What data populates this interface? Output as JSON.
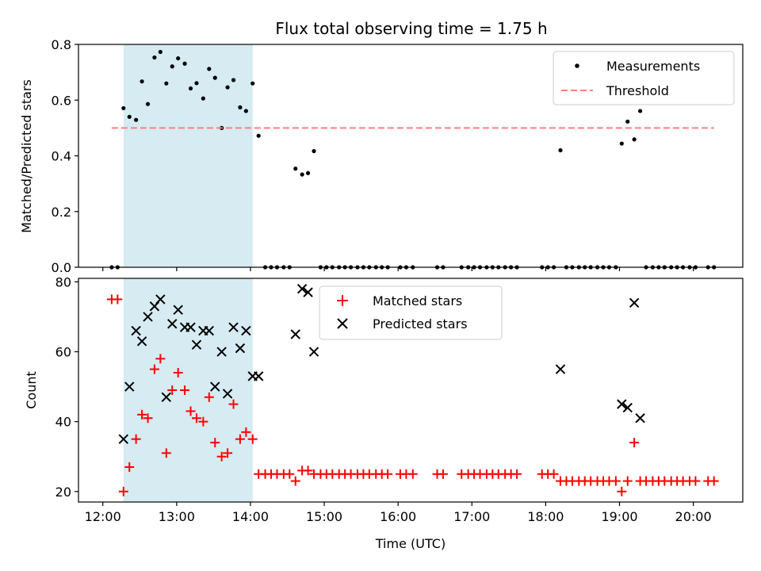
{
  "chart_data": {
    "title": "Flux total observing time = 1.75 h",
    "xlabel": "Time (UTC)",
    "x_unit": "hour of day (UTC)",
    "xlim": [
      11.67,
      20.67
    ],
    "x_ticks": [
      12,
      13,
      14,
      15,
      16,
      17,
      18,
      19,
      20
    ],
    "x_tick_labels": [
      "12:00",
      "13:00",
      "14:00",
      "15:00",
      "16:00",
      "17:00",
      "18:00",
      "19:00",
      "20:00"
    ],
    "highlight_span": {
      "x0": 12.28,
      "x1": 14.03,
      "color": "#add8e6"
    },
    "panels": [
      {
        "type": "scatter",
        "ylabel": "Matched/Predicted stars",
        "ylim": [
          0.0,
          0.8
        ],
        "y_ticks": [
          0.0,
          0.2,
          0.4,
          0.6,
          0.8
        ],
        "y_tick_labels": [
          "0.0",
          "0.2",
          "0.4",
          "0.6",
          "0.8"
        ],
        "legend": {
          "placement": "top-right",
          "entries": [
            "Measurements",
            "Threshold"
          ]
        },
        "series": [
          {
            "name": "Measurements",
            "marker": "dot",
            "color": "#000000",
            "points": [
              [
                12.12,
                0.0
              ],
              [
                12.2,
                0.0
              ],
              [
                12.28,
                0.571
              ],
              [
                12.36,
                0.54
              ],
              [
                12.45,
                0.529
              ],
              [
                12.53,
                0.667
              ],
              [
                12.61,
                0.586
              ],
              [
                12.7,
                0.753
              ],
              [
                12.78,
                0.773
              ],
              [
                12.86,
                0.66
              ],
              [
                12.94,
                0.721
              ],
              [
                13.02,
                0.75
              ],
              [
                13.11,
                0.731
              ],
              [
                13.19,
                0.642
              ],
              [
                13.27,
                0.661
              ],
              [
                13.36,
                0.606
              ],
              [
                13.44,
                0.712
              ],
              [
                13.52,
                0.68
              ],
              [
                13.61,
                0.5
              ],
              [
                13.69,
                0.646
              ],
              [
                13.77,
                0.672
              ],
              [
                13.86,
                0.574
              ],
              [
                13.94,
                0.561
              ],
              [
                14.03,
                0.66
              ],
              [
                14.11,
                0.472
              ],
              [
                14.2,
                0.0
              ],
              [
                14.28,
                0.0
              ],
              [
                14.36,
                0.0
              ],
              [
                14.45,
                0.0
              ],
              [
                14.53,
                0.0
              ],
              [
                14.61,
                0.354
              ],
              [
                14.7,
                0.333
              ],
              [
                14.78,
                0.338
              ],
              [
                14.86,
                0.417
              ],
              [
                14.95,
                0.0
              ],
              [
                15.03,
                0.0
              ],
              [
                15.11,
                0.0
              ],
              [
                15.2,
                0.0
              ],
              [
                15.28,
                0.0
              ],
              [
                15.36,
                0.0
              ],
              [
                15.45,
                0.0
              ],
              [
                15.53,
                0.0
              ],
              [
                15.61,
                0.0
              ],
              [
                15.7,
                0.0
              ],
              [
                15.78,
                0.0
              ],
              [
                15.86,
                0.0
              ],
              [
                16.03,
                0.0
              ],
              [
                16.11,
                0.0
              ],
              [
                16.2,
                0.0
              ],
              [
                16.53,
                0.0
              ],
              [
                16.61,
                0.0
              ],
              [
                16.86,
                0.0
              ],
              [
                16.95,
                0.0
              ],
              [
                17.03,
                0.0
              ],
              [
                17.11,
                0.0
              ],
              [
                17.2,
                0.0
              ],
              [
                17.28,
                0.0
              ],
              [
                17.36,
                0.0
              ],
              [
                17.45,
                0.0
              ],
              [
                17.53,
                0.0
              ],
              [
                17.61,
                0.0
              ],
              [
                17.95,
                0.0
              ],
              [
                18.03,
                0.0
              ],
              [
                18.11,
                0.0
              ],
              [
                18.2,
                0.42
              ],
              [
                18.28,
                0.0
              ],
              [
                18.36,
                0.0
              ],
              [
                18.45,
                0.0
              ],
              [
                18.53,
                0.0
              ],
              [
                18.61,
                0.0
              ],
              [
                18.7,
                0.0
              ],
              [
                18.78,
                0.0
              ],
              [
                18.86,
                0.0
              ],
              [
                18.95,
                0.0
              ],
              [
                19.03,
                0.444
              ],
              [
                19.11,
                0.523
              ],
              [
                19.2,
                0.459
              ],
              [
                19.28,
                0.561
              ],
              [
                19.36,
                0.0
              ],
              [
                19.45,
                0.0
              ],
              [
                19.53,
                0.0
              ],
              [
                19.61,
                0.0
              ],
              [
                19.7,
                0.0
              ],
              [
                19.78,
                0.0
              ],
              [
                19.86,
                0.0
              ],
              [
                19.95,
                0.0
              ],
              [
                20.03,
                0.0
              ],
              [
                20.2,
                0.0
              ],
              [
                20.28,
                0.0
              ]
            ]
          },
          {
            "name": "Threshold",
            "type": "line",
            "style": "dashed",
            "color": "#ff7f7f",
            "y": 0.5,
            "x_range": [
              12.12,
              20.28
            ]
          }
        ]
      },
      {
        "type": "scatter",
        "ylabel": "Count",
        "ylim": [
          17,
          81
        ],
        "y_ticks": [
          20,
          40,
          60,
          80
        ],
        "y_tick_labels": [
          "20",
          "40",
          "60",
          "80"
        ],
        "legend": {
          "placement": "top-center",
          "entries": [
            "Matched stars",
            "Predicted stars"
          ]
        },
        "series": [
          {
            "name": "Matched stars",
            "marker": "plus",
            "color": "#ff0000",
            "points": [
              [
                12.12,
                75
              ],
              [
                12.2,
                75
              ],
              [
                12.28,
                20
              ],
              [
                12.36,
                27
              ],
              [
                12.45,
                35
              ],
              [
                12.53,
                42
              ],
              [
                12.61,
                41
              ],
              [
                12.7,
                55
              ],
              [
                12.78,
                58
              ],
              [
                12.86,
                31
              ],
              [
                12.94,
                49
              ],
              [
                13.02,
                54
              ],
              [
                13.11,
                49
              ],
              [
                13.19,
                43
              ],
              [
                13.27,
                41
              ],
              [
                13.36,
                40
              ],
              [
                13.44,
                47
              ],
              [
                13.52,
                34
              ],
              [
                13.61,
                30
              ],
              [
                13.69,
                31
              ],
              [
                13.77,
                45
              ],
              [
                13.86,
                35
              ],
              [
                13.94,
                37
              ],
              [
                14.03,
                35
              ],
              [
                14.11,
                25
              ],
              [
                14.2,
                25
              ],
              [
                14.28,
                25
              ],
              [
                14.36,
                25
              ],
              [
                14.45,
                25
              ],
              [
                14.53,
                25
              ],
              [
                14.61,
                23
              ],
              [
                14.7,
                26
              ],
              [
                14.78,
                26
              ],
              [
                14.86,
                25
              ],
              [
                14.95,
                25
              ],
              [
                15.03,
                25
              ],
              [
                15.11,
                25
              ],
              [
                15.2,
                25
              ],
              [
                15.28,
                25
              ],
              [
                15.36,
                25
              ],
              [
                15.45,
                25
              ],
              [
                15.53,
                25
              ],
              [
                15.61,
                25
              ],
              [
                15.7,
                25
              ],
              [
                15.78,
                25
              ],
              [
                15.86,
                25
              ],
              [
                16.03,
                25
              ],
              [
                16.11,
                25
              ],
              [
                16.2,
                25
              ],
              [
                16.53,
                25
              ],
              [
                16.61,
                25
              ],
              [
                16.86,
                25
              ],
              [
                16.95,
                25
              ],
              [
                17.03,
                25
              ],
              [
                17.11,
                25
              ],
              [
                17.2,
                25
              ],
              [
                17.28,
                25
              ],
              [
                17.36,
                25
              ],
              [
                17.45,
                25
              ],
              [
                17.53,
                25
              ],
              [
                17.61,
                25
              ],
              [
                17.95,
                25
              ],
              [
                18.03,
                25
              ],
              [
                18.11,
                25
              ],
              [
                18.2,
                23
              ],
              [
                18.28,
                23
              ],
              [
                18.36,
                23
              ],
              [
                18.45,
                23
              ],
              [
                18.53,
                23
              ],
              [
                18.61,
                23
              ],
              [
                18.7,
                23
              ],
              [
                18.78,
                23
              ],
              [
                18.86,
                23
              ],
              [
                18.95,
                23
              ],
              [
                19.03,
                20
              ],
              [
                19.11,
                23
              ],
              [
                19.2,
                34
              ],
              [
                19.28,
                23
              ],
              [
                19.36,
                23
              ],
              [
                19.45,
                23
              ],
              [
                19.53,
                23
              ],
              [
                19.61,
                23
              ],
              [
                19.7,
                23
              ],
              [
                19.78,
                23
              ],
              [
                19.86,
                23
              ],
              [
                19.95,
                23
              ],
              [
                20.03,
                23
              ],
              [
                20.2,
                23
              ],
              [
                20.28,
                23
              ]
            ]
          },
          {
            "name": "Predicted stars",
            "marker": "x",
            "color": "#000000",
            "points": [
              [
                12.28,
                35
              ],
              [
                12.36,
                50
              ],
              [
                12.45,
                66
              ],
              [
                12.53,
                63
              ],
              [
                12.61,
                70
              ],
              [
                12.7,
                73
              ],
              [
                12.78,
                75
              ],
              [
                12.86,
                47
              ],
              [
                12.94,
                68
              ],
              [
                13.02,
                72
              ],
              [
                13.11,
                67
              ],
              [
                13.19,
                67
              ],
              [
                13.27,
                62
              ],
              [
                13.36,
                66
              ],
              [
                13.44,
                66
              ],
              [
                13.52,
                50
              ],
              [
                13.61,
                60
              ],
              [
                13.69,
                48
              ],
              [
                13.77,
                67
              ],
              [
                13.86,
                61
              ],
              [
                13.94,
                66
              ],
              [
                14.03,
                53
              ],
              [
                14.11,
                53
              ],
              [
                14.61,
                65
              ],
              [
                14.7,
                78
              ],
              [
                14.78,
                77
              ],
              [
                14.86,
                60
              ],
              [
                18.2,
                55
              ],
              [
                19.03,
                45
              ],
              [
                19.11,
                44
              ],
              [
                19.2,
                74
              ],
              [
                19.28,
                41
              ]
            ]
          }
        ]
      }
    ]
  }
}
